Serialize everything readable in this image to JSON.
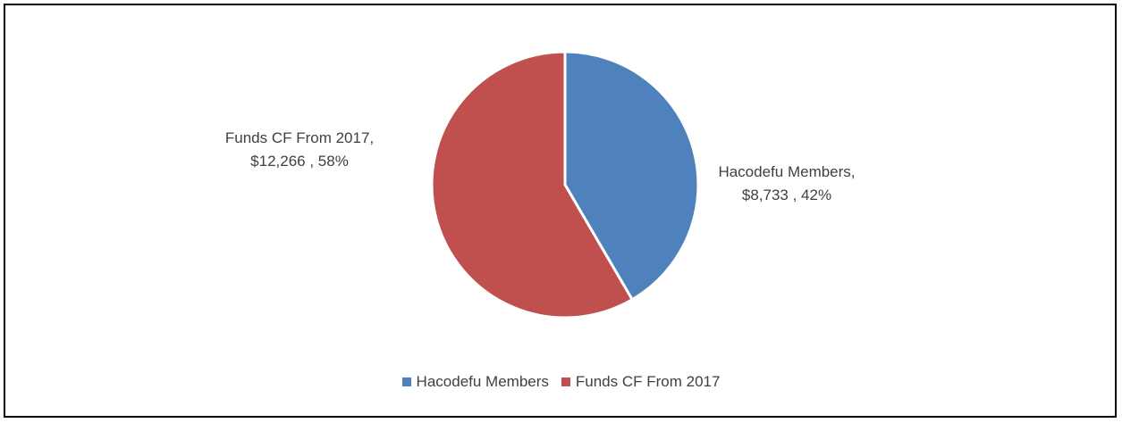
{
  "chart_data": {
    "type": "pie",
    "title": "",
    "series": [
      {
        "name": "",
        "categories": [
          "Hacodefu Members",
          "Funds CF From 2017"
        ],
        "values": [
          8733,
          12266
        ],
        "value_labels": [
          "$8,733",
          "$12,266"
        ],
        "percent_labels": [
          "42%",
          "58%"
        ],
        "colors": [
          "#4F81BD",
          "#C0504D"
        ]
      }
    ],
    "legend": {
      "placement": "bottom",
      "entries": [
        "Hacodefu Members",
        "Funds CF From 2017"
      ]
    },
    "data_labels": {
      "slice_0": {
        "line1": "Hacodefu Members,",
        "line2": "$8,733 , 42%"
      },
      "slice_1": {
        "line1": "Funds CF From 2017,",
        "line2": "$12,266 , 58%"
      }
    }
  }
}
